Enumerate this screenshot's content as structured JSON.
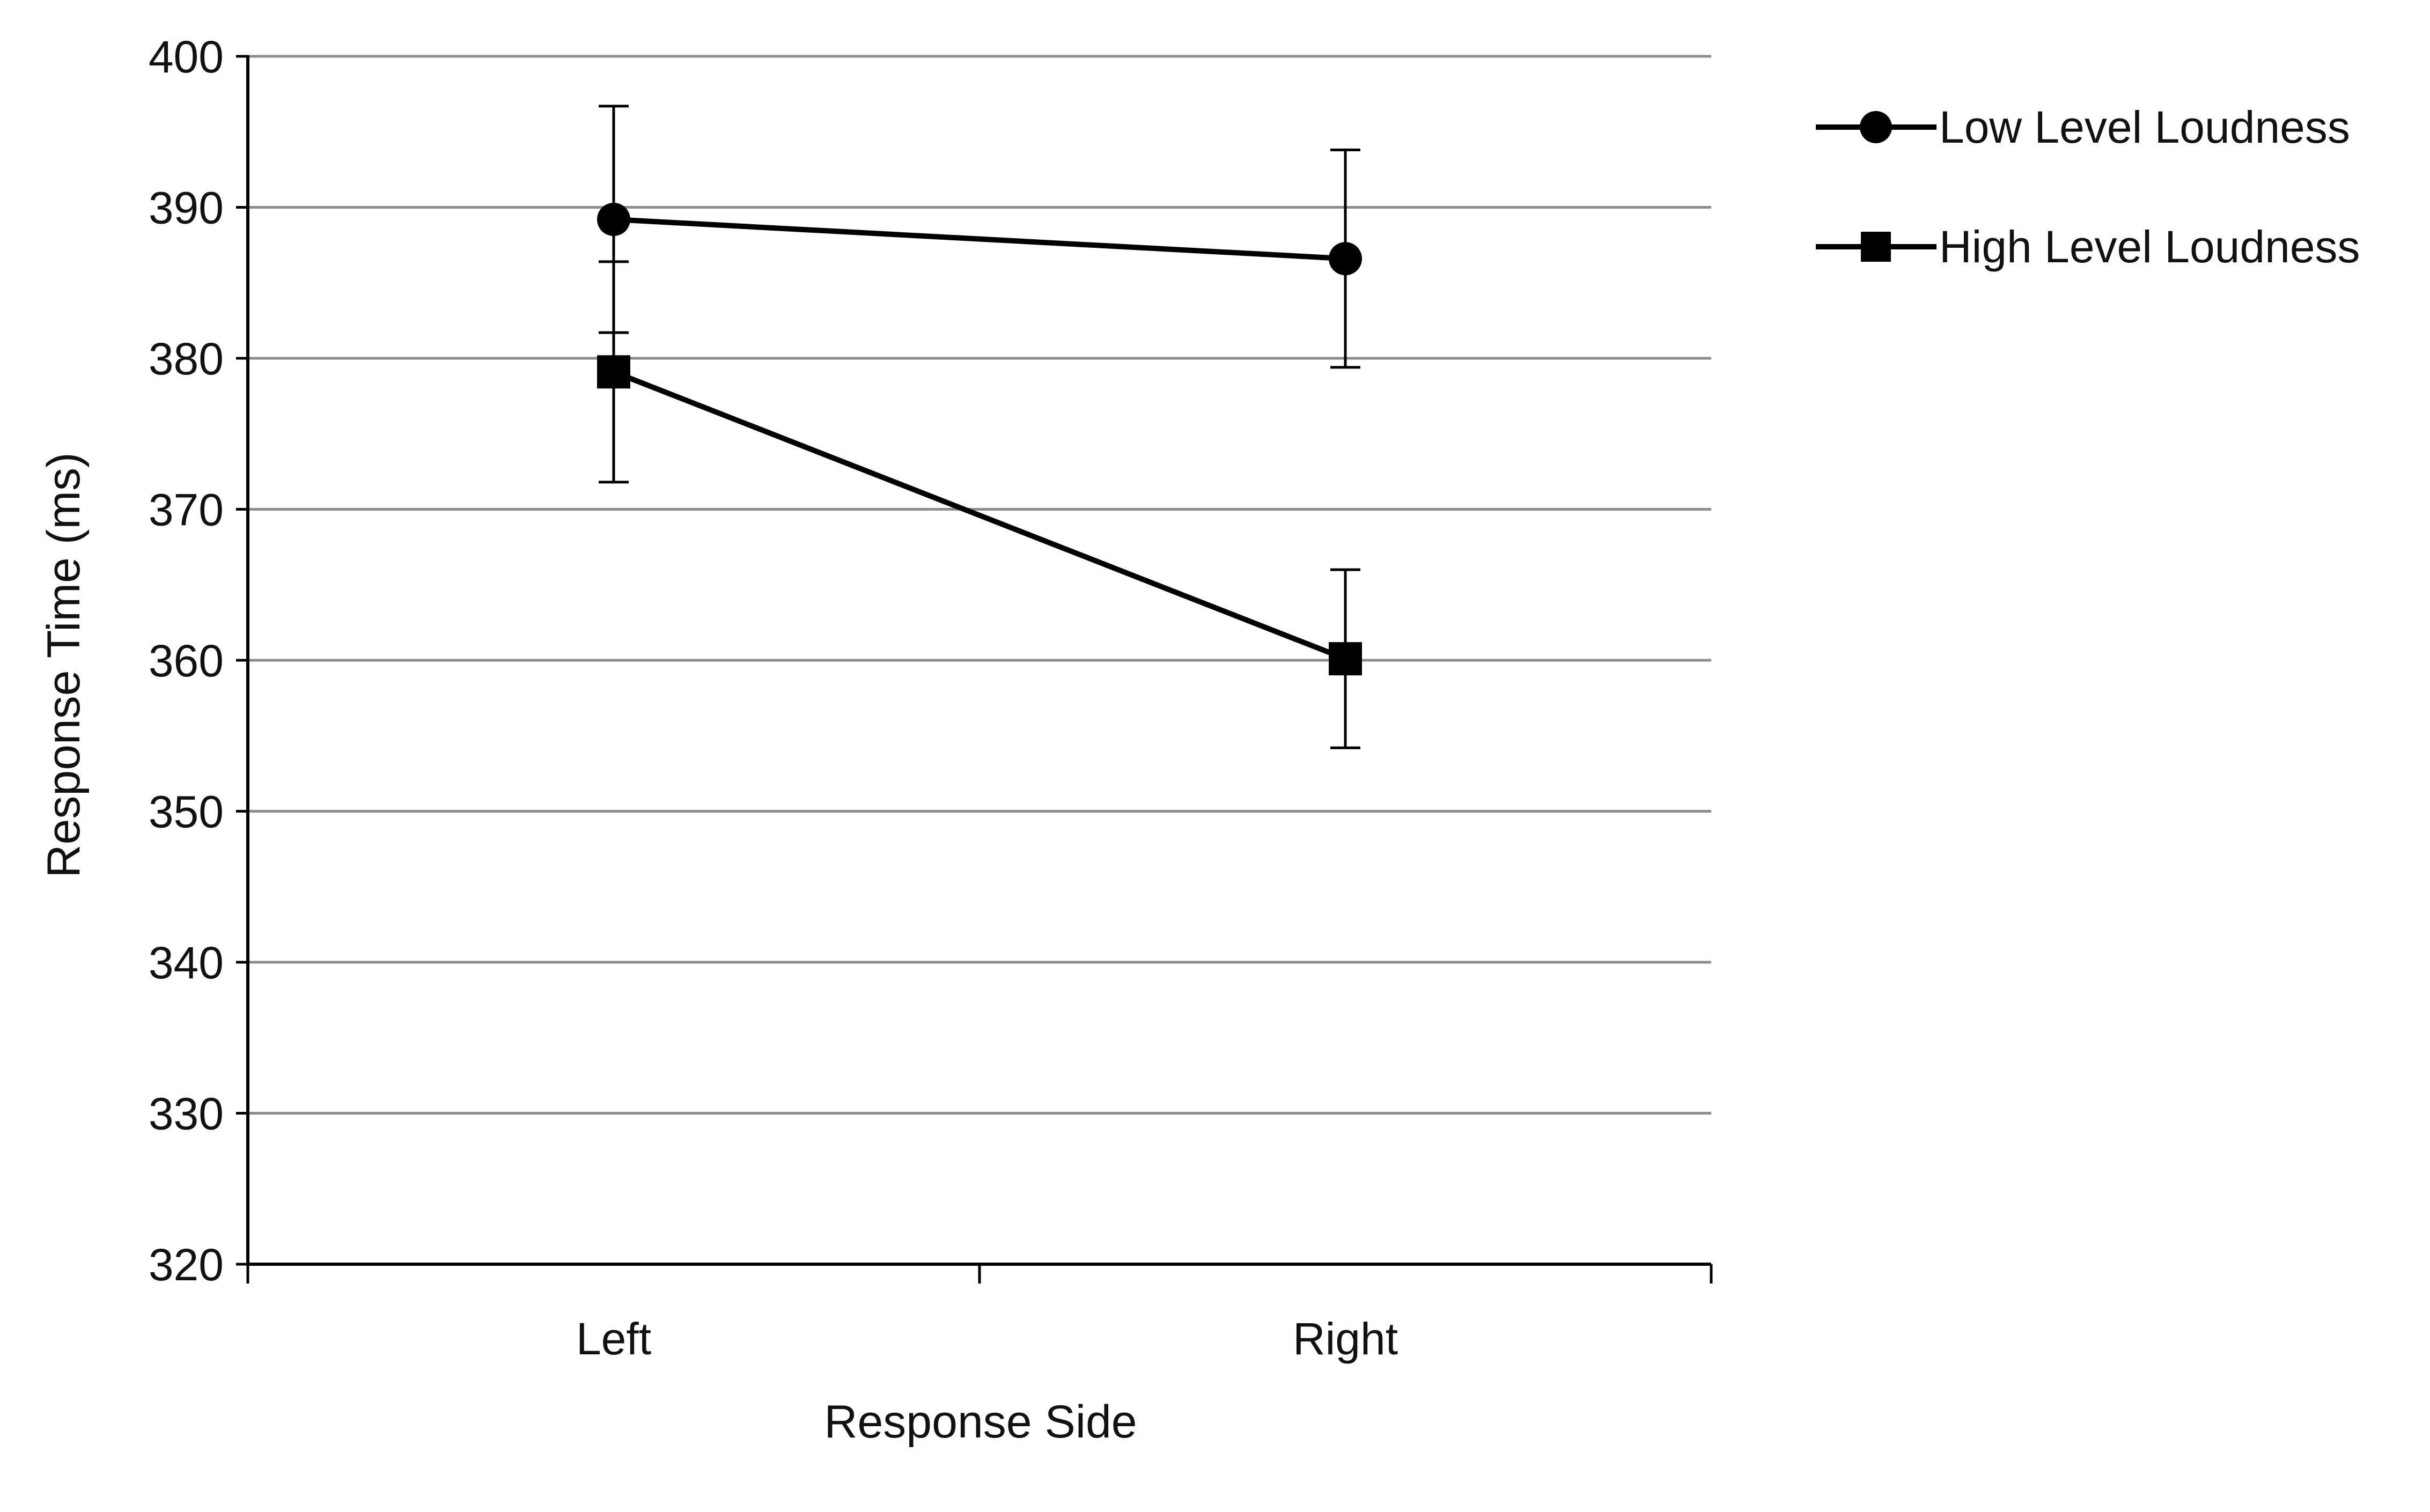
{
  "chart_data": {
    "type": "line",
    "title": "",
    "xlabel": "Response Side",
    "ylabel": "Response Time (ms)",
    "categories": [
      "Left",
      "Right"
    ],
    "ylim": [
      320,
      400
    ],
    "yticks": [
      320,
      330,
      340,
      350,
      360,
      370,
      380,
      390,
      400
    ],
    "ytick_labels": [
      "320",
      "330",
      "340",
      "350",
      "360",
      "370",
      "380",
      "390",
      "400"
    ],
    "grid": "horizontal",
    "legend_position": "top-right, outside plot",
    "series": [
      {
        "name": "Low Level Loudness",
        "marker": "circle",
        "color": "#000000",
        "values": [
          389.2,
          386.6
        ],
        "error": [
          7.5,
          7.2
        ]
      },
      {
        "name": "High Level Loudness",
        "marker": "square",
        "color": "#000000",
        "values": [
          379.1,
          360.1
        ],
        "error": [
          7.3,
          5.9
        ]
      }
    ]
  }
}
